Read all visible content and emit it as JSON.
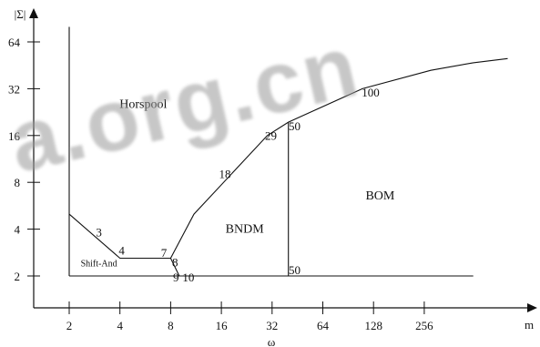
{
  "chart_data": {
    "type": "line",
    "title": "",
    "xlabel": "m",
    "xlabel2": "ω",
    "ylabel": "|Σ|",
    "x_scale": "log2",
    "y_scale": "log2",
    "x_ticks": [
      2,
      4,
      8,
      16,
      32,
      64,
      128,
      256
    ],
    "y_ticks": [
      2,
      4,
      8,
      16,
      32,
      64
    ],
    "xlim": [
      1.4,
      1200
    ],
    "ylim": [
      1.4,
      100
    ],
    "series": [
      {
        "values": [
          [
            2,
            5
          ],
          [
            4,
            2.6
          ],
          [
            8,
            2.6
          ],
          [
            9,
            2
          ]
        ]
      },
      {
        "values": [
          [
            8,
            2.6
          ],
          [
            11,
            5
          ],
          [
            30,
            16
          ],
          [
            40,
            19.5
          ],
          [
            110,
            32
          ],
          [
            280,
            42
          ],
          [
            500,
            47
          ],
          [
            800,
            50
          ]
        ]
      },
      {
        "values": [
          [
            40,
            2
          ],
          [
            40,
            19.5
          ]
        ]
      },
      {
        "values": [
          [
            2,
            2
          ],
          [
            500,
            2
          ]
        ]
      },
      {
        "values": [
          [
            2,
            2
          ],
          [
            2,
            80
          ]
        ]
      }
    ],
    "region_labels": [
      {
        "text": "Horspool",
        "x": 5.5,
        "y": 24
      },
      {
        "text": "BNDM",
        "x": 22,
        "y": 3.8
      },
      {
        "text": "BOM",
        "x": 140,
        "y": 6.2
      },
      {
        "text": "Shift-And",
        "x": 3.0,
        "y": 2.3
      }
    ],
    "annotations": [
      {
        "text": "3",
        "x": 3.0,
        "y": 3.6
      },
      {
        "text": "4",
        "x": 4.1,
        "y": 2.75
      },
      {
        "text": "7",
        "x": 7.3,
        "y": 2.65
      },
      {
        "text": "8",
        "x": 8.5,
        "y": 2.3
      },
      {
        "text": "9",
        "x": 8.6,
        "y": 1.85
      },
      {
        "text": "10",
        "x": 10.2,
        "y": 1.85
      },
      {
        "text": "18",
        "x": 16.8,
        "y": 8.5
      },
      {
        "text": "29",
        "x": 31.5,
        "y": 15
      },
      {
        "text": "50",
        "x": 43.5,
        "y": 17.3
      },
      {
        "text": "50",
        "x": 43.5,
        "y": 2.05
      },
      {
        "text": "100",
        "x": 123,
        "y": 28.5
      }
    ],
    "grid": false,
    "legend": "none"
  },
  "colors": {
    "ink": "#111111",
    "background": "#ffffff",
    "watermark": "#9a9a9a"
  },
  "watermark_text": "a.org.cn"
}
